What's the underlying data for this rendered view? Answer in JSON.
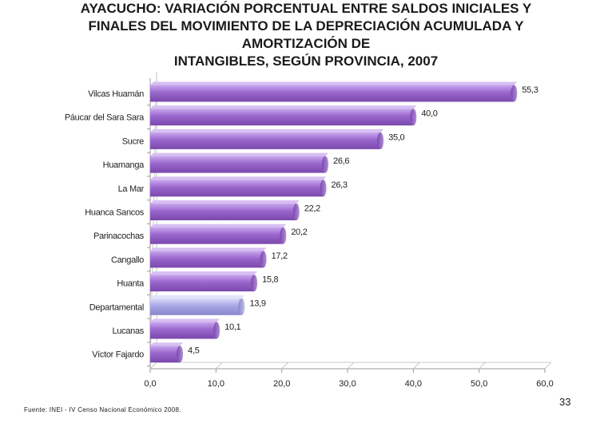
{
  "title_lines": [
    "AYACUCHO: VARIACIÓN PORCENTUAL ENTRE SALDOS INICIALES Y",
    "FINALES DEL MOVIMIENTO DE LA DEPRECIACIÓN ACUMULADA Y",
    "AMORTIZACIÓN DE",
    "INTANGIBLES, SEGÚN PROVINCIA, 2007"
  ],
  "source": "Fuente: INEI - IV Censo Nacional Económico 2008.",
  "page_number": "33",
  "colors": {
    "bar": "#9966cc",
    "bar_highlight": "#a8a6e6",
    "axis": "#9a9a9a",
    "grid": "#c8c8c8"
  },
  "chart_data": {
    "type": "bar",
    "orientation": "horizontal",
    "categories": [
      "Vilcas Huamán",
      "Páucar del Sara Sara",
      "Sucre",
      "Huamanga",
      "La Mar",
      "Huanca Sancos",
      "Parinacochas",
      "Cangallo",
      "Huanta",
      "Departamental",
      "Lucanas",
      "Víctor Fajardo"
    ],
    "values": [
      55.3,
      40.0,
      35.0,
      26.6,
      26.3,
      22.2,
      20.2,
      17.2,
      15.8,
      13.9,
      10.1,
      4.5
    ],
    "value_labels": [
      "55,3",
      "40,0",
      "35,0",
      "26,6",
      "26,3",
      "22,2",
      "20,2",
      "17,2",
      "15,8",
      "13,9",
      "10,1",
      "4,5"
    ],
    "highlight_category": "Departamental",
    "xlim": [
      0,
      60
    ],
    "xticks": [
      0,
      10,
      20,
      30,
      40,
      50,
      60
    ],
    "xtick_labels": [
      "0,0",
      "10,0",
      "20,0",
      "30,0",
      "40,0",
      "50,0",
      "60,0"
    ],
    "title": "AYACUCHO: VARIACIÓN PORCENTUAL ENTRE SALDOS INICIALES Y FINALES DEL MOVIMIENTO DE LA DEPRECIACIÓN ACUMULADA Y AMORTIZACIÓN DE INTANGIBLES, SEGÚN PROVINCIA, 2007",
    "xlabel": "",
    "ylabel": "",
    "grid": false
  }
}
